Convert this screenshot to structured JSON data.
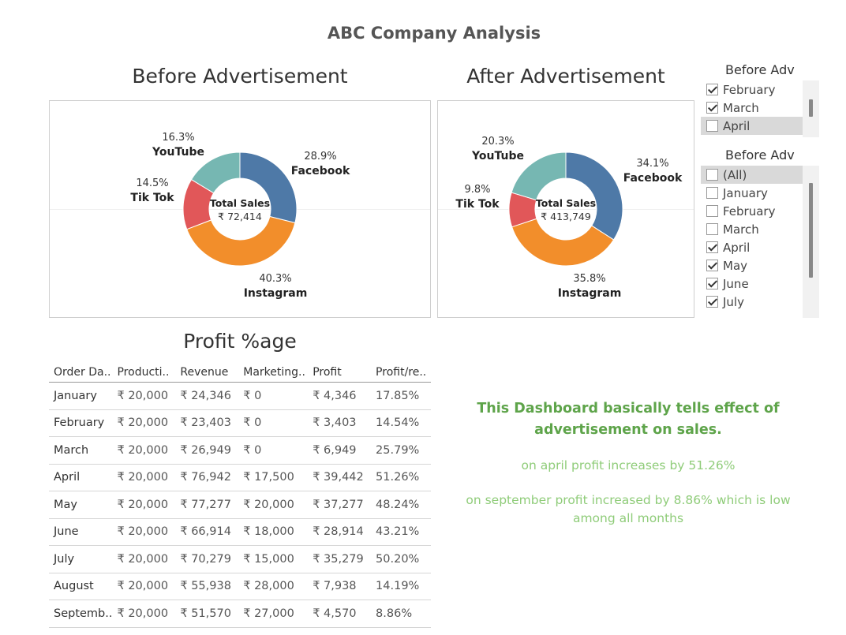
{
  "dashboard_title": "ABC Company Analysis",
  "charts": {
    "before": {
      "title": "Before Advertisement",
      "center_label": "Total Sales",
      "center_value": "₹ 72,414",
      "slices": [
        {
          "name": "Facebook",
          "pct": "28.9%",
          "value": 28.9,
          "color": "#4e79a7"
        },
        {
          "name": "Instagram",
          "pct": "40.3%",
          "value": 40.3,
          "color": "#f28e2b"
        },
        {
          "name": "Tik Tok",
          "pct": "14.5%",
          "value": 14.5,
          "color": "#e15759"
        },
        {
          "name": "YouTube",
          "pct": "16.3%",
          "value": 16.3,
          "color": "#76b7b2"
        }
      ]
    },
    "after": {
      "title": "After Advertisement",
      "center_label": "Total Sales",
      "center_value": "₹ 413,749",
      "slices": [
        {
          "name": "Facebook",
          "pct": "34.1%",
          "value": 34.1,
          "color": "#4e79a7"
        },
        {
          "name": "Instagram",
          "pct": "35.8%",
          "value": 35.8,
          "color": "#f28e2b"
        },
        {
          "name": "Tik Tok",
          "pct": "9.8%",
          "value": 9.8,
          "color": "#e15759"
        },
        {
          "name": "YouTube",
          "pct": "20.3%",
          "value": 20.3,
          "color": "#76b7b2"
        }
      ]
    }
  },
  "filters": {
    "f1": {
      "title": "Before Adv",
      "items": [
        {
          "label": "February",
          "checked": true
        },
        {
          "label": "March",
          "checked": true
        },
        {
          "label": "April",
          "checked": false,
          "highlight": true
        }
      ]
    },
    "f2": {
      "title": "Before Adv",
      "items": [
        {
          "label": "(All)",
          "checked": false,
          "highlight": true
        },
        {
          "label": "January",
          "checked": false
        },
        {
          "label": "February",
          "checked": false
        },
        {
          "label": "March",
          "checked": false
        },
        {
          "label": "April",
          "checked": true
        },
        {
          "label": "May",
          "checked": true
        },
        {
          "label": "June",
          "checked": true
        },
        {
          "label": "July",
          "checked": true
        }
      ]
    }
  },
  "table": {
    "title": "Profit %age",
    "headers": [
      "Order Da..",
      "Producti..",
      "Revenue",
      "Marketing..",
      "Profit",
      "Profit/re.."
    ],
    "rows": [
      [
        "January",
        "₹ 20,000",
        "₹ 24,346",
        "₹ 0",
        "₹ 4,346",
        "17.85%"
      ],
      [
        "February",
        "₹ 20,000",
        "₹ 23,403",
        "₹ 0",
        "₹ 3,403",
        "14.54%"
      ],
      [
        "March",
        "₹ 20,000",
        "₹ 26,949",
        "₹ 0",
        "₹ 6,949",
        "25.79%"
      ],
      [
        "April",
        "₹ 20,000",
        "₹ 76,942",
        "₹ 17,500",
        "₹ 39,442",
        "51.26%"
      ],
      [
        "May",
        "₹ 20,000",
        "₹ 77,277",
        "₹ 20,000",
        "₹ 37,277",
        "48.24%"
      ],
      [
        "June",
        "₹ 20,000",
        "₹ 66,914",
        "₹ 18,000",
        "₹ 28,914",
        "43.21%"
      ],
      [
        "July",
        "₹ 20,000",
        "₹ 70,279",
        "₹ 15,000",
        "₹ 35,279",
        "50.20%"
      ],
      [
        "August",
        "₹ 20,000",
        "₹ 55,938",
        "₹ 28,000",
        "₹ 7,938",
        "14.19%"
      ],
      [
        "Septemb..",
        "₹ 20,000",
        "₹ 51,570",
        "₹ 27,000",
        "₹ 4,570",
        "8.86%"
      ]
    ]
  },
  "notes": {
    "headline": "This Dashboard basically tells effect of advertisement on sales.",
    "line1": "on april profit increases by 51.26%",
    "line2": "on september profit increased by 8.86% which is low among all months"
  }
}
